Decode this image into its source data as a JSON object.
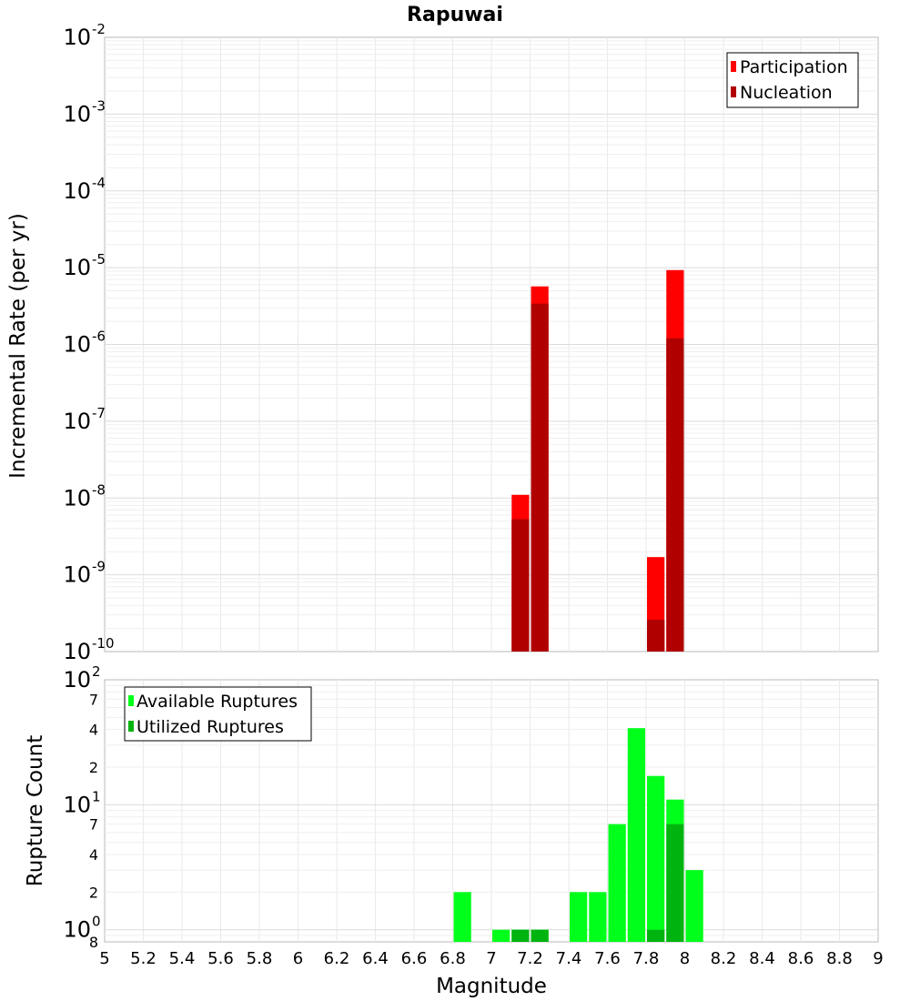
{
  "chart_data": [
    {
      "type": "bar",
      "title": "Rapuwai",
      "ylabel": "Incremental Rate (per yr)",
      "y_scale": "log",
      "ylim": [
        1e-10,
        0.01
      ],
      "xlim": [
        5,
        9
      ],
      "bar_width": 0.1,
      "grid": true,
      "legend_position": "top-right",
      "y_ticks": [
        {
          "base": "10",
          "exp": "-10",
          "value": 1e-10
        },
        {
          "base": "10",
          "exp": "-9",
          "value": 1e-09
        },
        {
          "base": "10",
          "exp": "-8",
          "value": 1e-08
        },
        {
          "base": "10",
          "exp": "-7",
          "value": 1e-07
        },
        {
          "base": "10",
          "exp": "-6",
          "value": 1e-06
        },
        {
          "base": "10",
          "exp": "-5",
          "value": 1e-05
        },
        {
          "base": "10",
          "exp": "-4",
          "value": 0.0001
        },
        {
          "base": "10",
          "exp": "-3",
          "value": 0.001
        },
        {
          "base": "10",
          "exp": "-2",
          "value": 0.01
        }
      ],
      "series": [
        {
          "name": "Participation",
          "color": "#ff0000",
          "points": [
            {
              "x": 7.15,
              "y": 1.1e-08
            },
            {
              "x": 7.25,
              "y": 5.7e-06
            },
            {
              "x": 7.85,
              "y": 1.7e-09
            },
            {
              "x": 7.95,
              "y": 9.3e-06
            }
          ]
        },
        {
          "name": "Nucleation",
          "color": "#b00000",
          "points": [
            {
              "x": 7.15,
              "y": 5.3e-09
            },
            {
              "x": 7.25,
              "y": 3.4e-06
            },
            {
              "x": 7.85,
              "y": 2.6e-10
            },
            {
              "x": 7.95,
              "y": 1.2e-06
            }
          ]
        }
      ]
    },
    {
      "type": "bar",
      "ylabel": "Rupture Count",
      "xlabel": "Magnitude",
      "y_scale": "log",
      "ylim": [
        0.8,
        100
      ],
      "xlim": [
        5,
        9
      ],
      "bar_width": 0.1,
      "grid": true,
      "legend_position": "top-left",
      "x_ticks": [
        "5",
        "5.2",
        "5.4",
        "5.6",
        "5.8",
        "6",
        "6.2",
        "6.4",
        "6.6",
        "6.8",
        "7",
        "7.2",
        "7.4",
        "7.6",
        "7.8",
        "8",
        "8.2",
        "8.4",
        "8.6",
        "8.8",
        "9"
      ],
      "y_ticks": [
        {
          "base": "",
          "exp": "",
          "label": "8",
          "value": 0.8
        },
        {
          "base": "10",
          "exp": "0",
          "value": 1
        },
        {
          "base": "",
          "exp": "",
          "label": "2",
          "value": 2
        },
        {
          "base": "",
          "exp": "",
          "label": "4",
          "value": 4
        },
        {
          "base": "",
          "exp": "",
          "label": "7",
          "value": 7
        },
        {
          "base": "10",
          "exp": "1",
          "value": 10
        },
        {
          "base": "",
          "exp": "",
          "label": "2",
          "value": 20
        },
        {
          "base": "",
          "exp": "",
          "label": "4",
          "value": 40
        },
        {
          "base": "",
          "exp": "",
          "label": "7",
          "value": 70
        },
        {
          "base": "10",
          "exp": "2",
          "value": 100
        }
      ],
      "series": [
        {
          "name": "Available Ruptures",
          "color": "#00ff1a",
          "points": [
            {
              "x": 6.85,
              "y": 2
            },
            {
              "x": 7.05,
              "y": 1
            },
            {
              "x": 7.15,
              "y": 1
            },
            {
              "x": 7.25,
              "y": 1
            },
            {
              "x": 7.45,
              "y": 2
            },
            {
              "x": 7.55,
              "y": 2
            },
            {
              "x": 7.65,
              "y": 7
            },
            {
              "x": 7.75,
              "y": 41
            },
            {
              "x": 7.85,
              "y": 17
            },
            {
              "x": 7.95,
              "y": 11
            },
            {
              "x": 8.05,
              "y": 3
            }
          ]
        },
        {
          "name": "Utilized Ruptures",
          "color": "#00b40f",
          "points": [
            {
              "x": 7.15,
              "y": 1
            },
            {
              "x": 7.25,
              "y": 1
            },
            {
              "x": 7.85,
              "y": 1
            },
            {
              "x": 7.95,
              "y": 7
            }
          ]
        }
      ]
    }
  ]
}
